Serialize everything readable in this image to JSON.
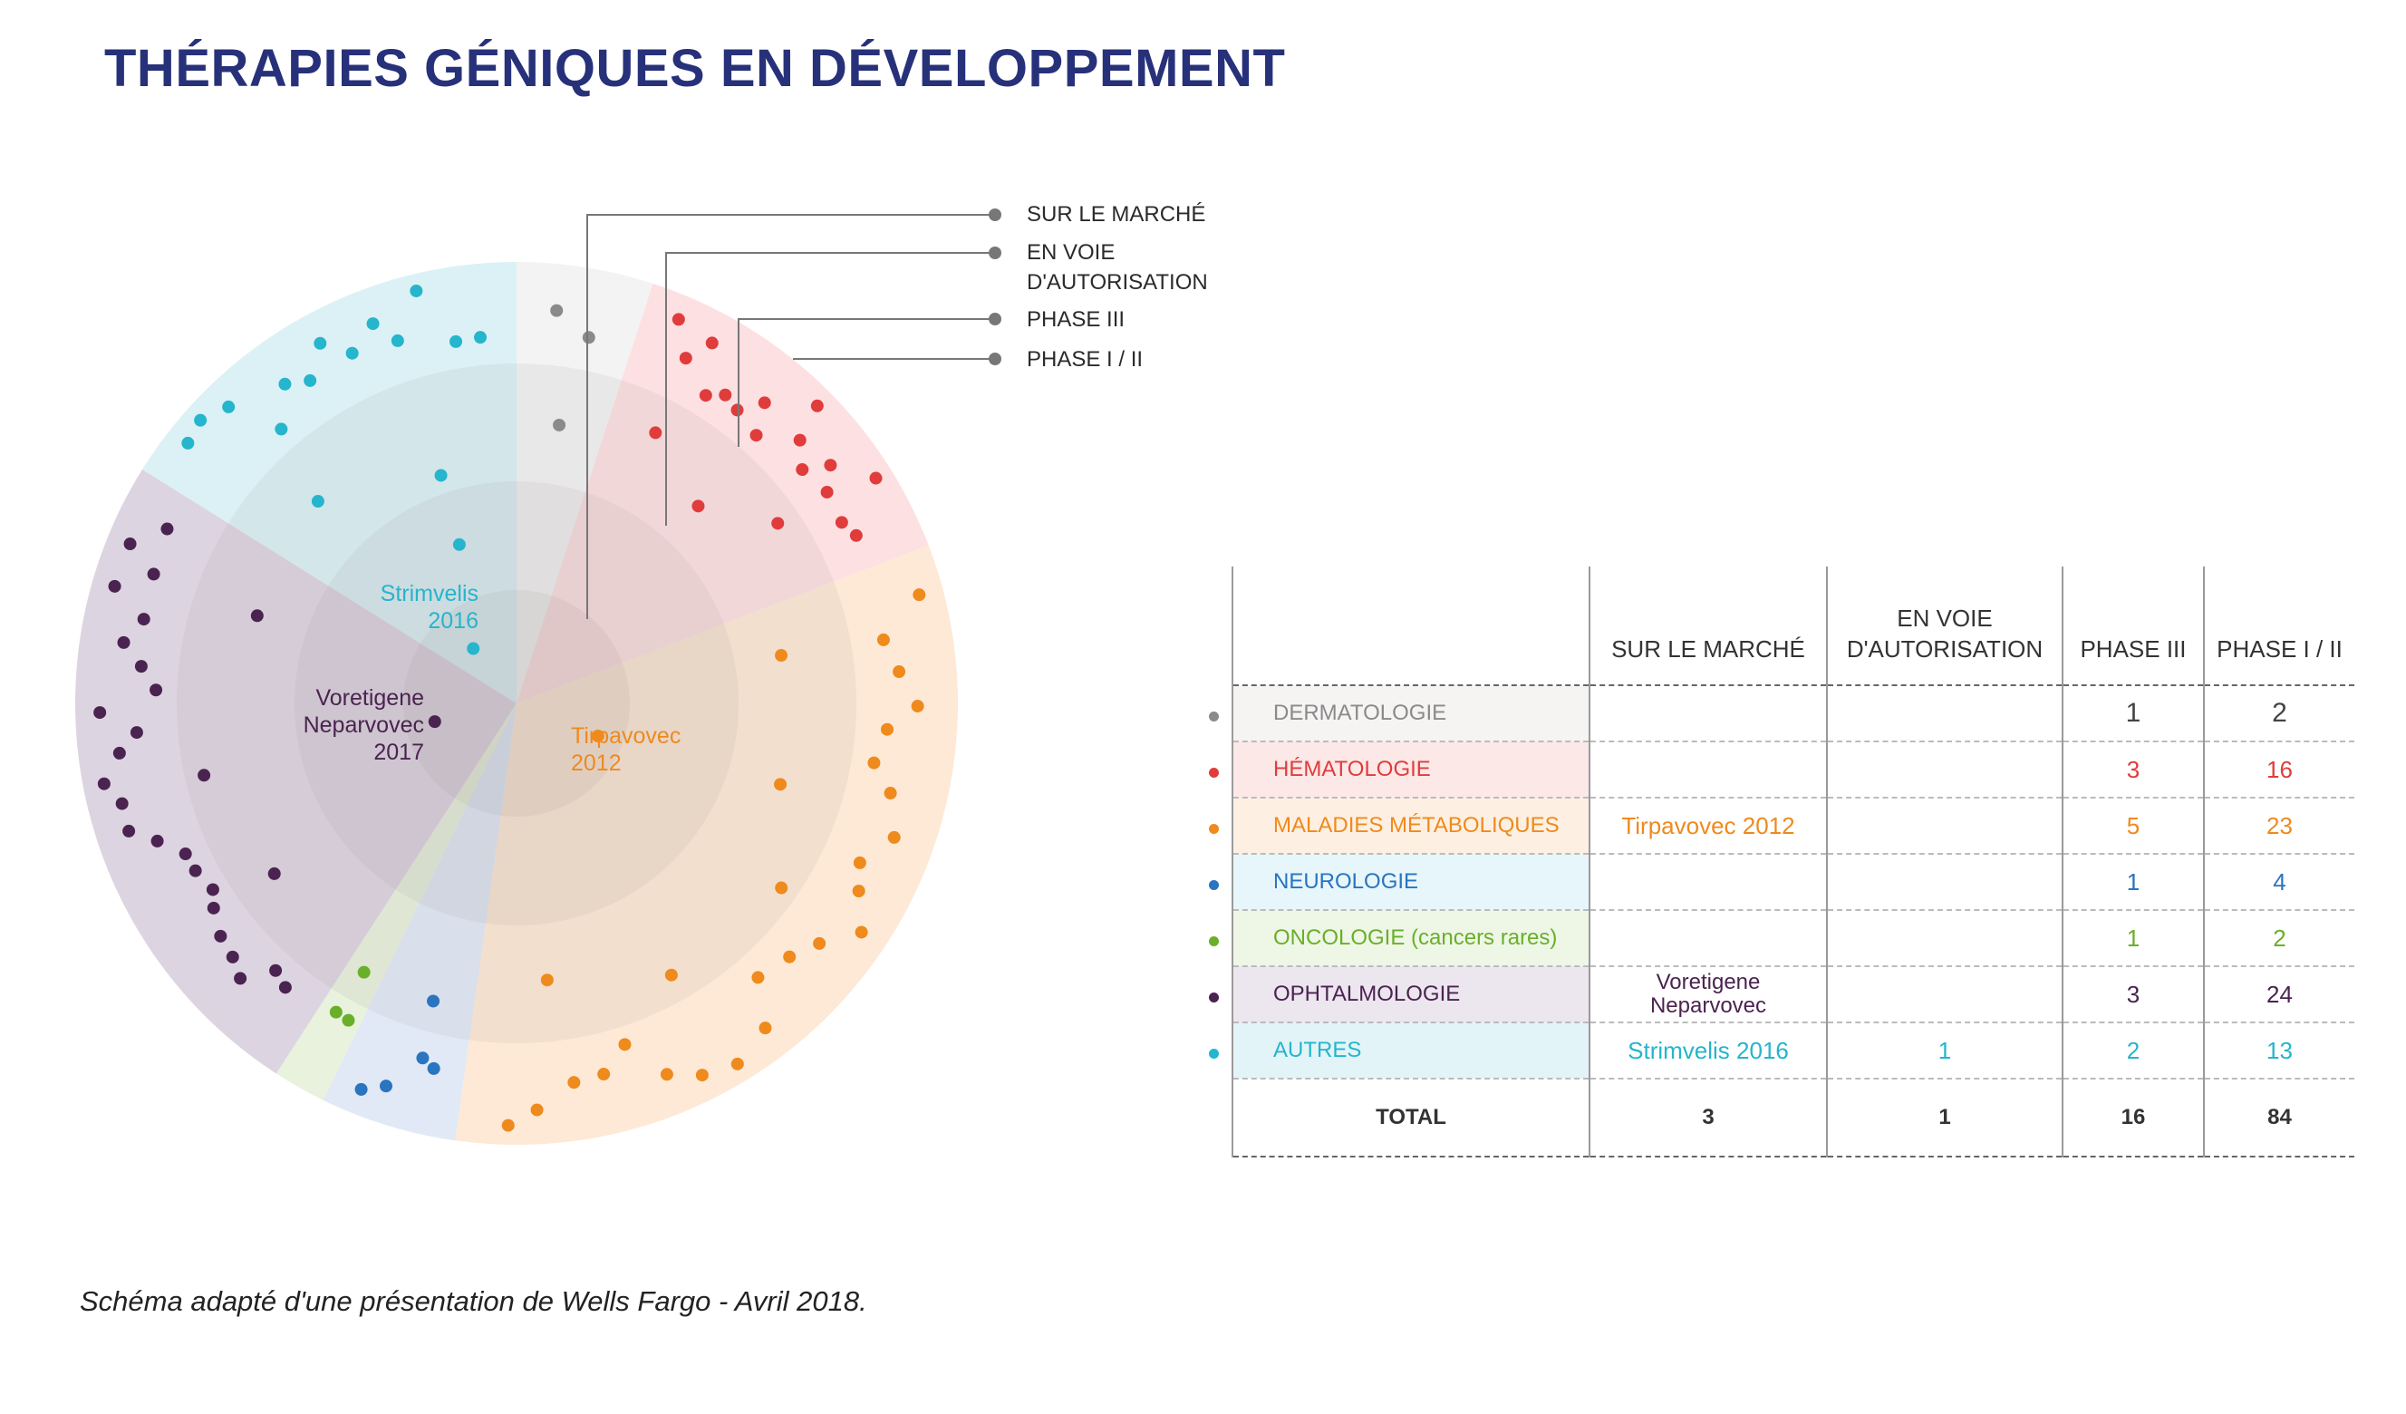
{
  "title": "THÉRAPIES GÉNIQUES EN DÉVELOPPEMENT",
  "source_note": "Schéma adapté d'une présentation de Wells Fargo - Avril 2018.",
  "chart_data": [
    {
      "type": "polar",
      "rings_legend": [
        "SUR LE MARCHÉ",
        "EN VOIE\nD'AUTORISATION",
        "PHASE III",
        "PHASE I / II"
      ],
      "sectors": [
        {
          "category": "DERMATOLOGIE",
          "color": "#8a8a8a",
          "bg": "#f3f3f3",
          "phase3": 1,
          "phase12": 2
        },
        {
          "category": "HÉMATOLOGIE",
          "color": "#e03c3c",
          "bg": "#fde0e2",
          "phase3": 3,
          "phase12": 16
        },
        {
          "category": "MALADIES MÉTABOLIQUES",
          "color": "#ef8a1d",
          "bg": "#fde9d6",
          "phase3": 5,
          "phase12": 23,
          "market_label": "Tirpavovec\n2012"
        },
        {
          "category": "NEUROLOGIE",
          "color": "#2a74c0",
          "bg": "#e1e9f6",
          "phase3": 1,
          "phase12": 4
        },
        {
          "category": "ONCOLOGIE",
          "color": "#6aaf2a",
          "bg": "#e8f2dd",
          "phase3": 1,
          "phase12": 2
        },
        {
          "category": "OPHTALMOLOGIE",
          "color": "#4b2350",
          "bg": "#ddd4e1",
          "phase3": 3,
          "phase12": 24,
          "market_label": "Voretigene\nNeparvovec\n2017"
        },
        {
          "category": "AUTRES",
          "color": "#25b5cc",
          "bg": "#dbf1f5",
          "phase3": 2,
          "phase12": 13,
          "approval": 1,
          "market_label": "Strimvelis\n2016"
        }
      ]
    },
    {
      "type": "table",
      "columns": [
        "",
        "SUR LE MARCHÉ",
        "EN VOIE\nD'AUTORISATION",
        "PHASE III",
        "PHASE I / II"
      ],
      "rows": [
        {
          "label": "DERMATOLOGIE",
          "color": "#8a8a8a",
          "bg": "#f6f3f3",
          "market": "",
          "approval": "",
          "phase3": "1",
          "phase12": "2"
        },
        {
          "label": "HÉMATOLOGIE",
          "color": "#e03c3c",
          "bg": "#fde8e8",
          "market": "",
          "approval": "",
          "phase3": "3",
          "phase12": "16"
        },
        {
          "label": "MALADIES MÉTABOLIQUES",
          "color": "#ef8a1d",
          "bg": "#fdf0e2",
          "market": "Tirpavovec 2012",
          "approval": "",
          "phase3": "5",
          "phase12": "23"
        },
        {
          "label": "NEUROLOGIE",
          "color": "#2a74c0",
          "bg": "#e7f6fa",
          "market": "",
          "approval": "",
          "phase3": "1",
          "phase12": "4"
        },
        {
          "label": "ONCOLOGIE (cancers rares)",
          "color": "#6aaf2a",
          "bg": "#eef6e6",
          "market": "",
          "approval": "",
          "phase3": "1",
          "phase12": "2"
        },
        {
          "label": "OPHTALMOLOGIE",
          "color": "#4b2350",
          "bg": "#ece6ef",
          "market": "Voretigene\nNeparvovec",
          "approval": "",
          "phase3": "3",
          "phase12": "24"
        },
        {
          "label": "AUTRES",
          "color": "#25b5cc",
          "bg": "#e2f4f8",
          "market": "Strimvelis 2016",
          "approval": "1",
          "phase3": "2",
          "phase12": "13"
        }
      ],
      "total": {
        "label": "TOTAL",
        "market": "3",
        "approval": "1",
        "phase3": "16",
        "phase12": "84"
      }
    }
  ]
}
